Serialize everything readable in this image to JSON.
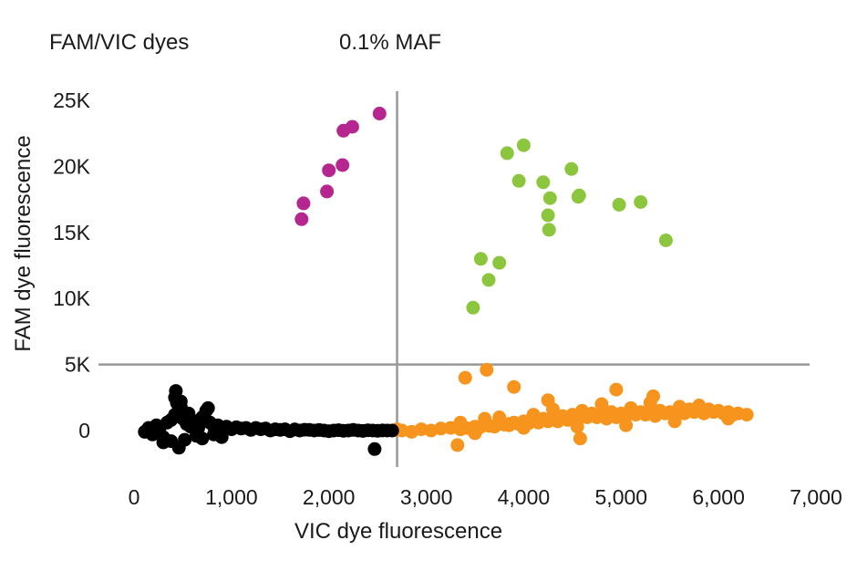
{
  "header": {
    "left": "FAM/VIC dyes",
    "right": "0.1% MAF"
  },
  "chart_data": {
    "type": "scatter",
    "xlabel": "VIC dye fluorescence",
    "ylabel": "FAM dye fluorescence",
    "xlim": [
      0,
      7000
    ],
    "ylim": [
      -2000,
      25000
    ],
    "x_ticks": [
      0,
      1000,
      2000,
      3000,
      4000,
      5000,
      6000,
      7000
    ],
    "x_tick_labels": [
      "0",
      "1,000",
      "2,000",
      "3,000",
      "4,000",
      "5,000",
      "6,000",
      "7,000"
    ],
    "y_ticks": [
      0,
      5000,
      10000,
      15000,
      20000,
      25000
    ],
    "y_tick_labels": [
      "0",
      "5K",
      "10K",
      "15K",
      "20K",
      "25K"
    ],
    "thresholds": {
      "x": 2700,
      "y": 5000
    },
    "grid": false,
    "legend": "none",
    "colors": {
      "fam_only": "#b5268e",
      "fam_vic": "#8cc63f",
      "vic_only": "#f7941d",
      "negative": "#000000",
      "threshold_line": "#999999"
    },
    "series": [
      {
        "color": "#b5268e",
        "x": [
          1720,
          1740,
          1980,
          2000,
          2140,
          2150,
          2240,
          2520
        ],
        "y": [
          16000,
          17200,
          18100,
          19700,
          20100,
          22700,
          23000,
          24000
        ]
      },
      {
        "color": "#8cc63f",
        "x": [
          3480,
          3560,
          3640,
          3750,
          3830,
          3950,
          4000,
          4200,
          4250,
          4260,
          4270,
          4490,
          4560,
          4570,
          4980,
          5200,
          5460
        ],
        "y": [
          9300,
          13000,
          11400,
          12700,
          21000,
          18900,
          21600,
          18800,
          16300,
          15200,
          17600,
          19800,
          17700,
          17800,
          17100,
          17300,
          14400
        ]
      },
      {
        "color": "#f7941d",
        "x": [
          2700,
          2750,
          2850,
          2950,
          3050,
          3150,
          3250,
          3320,
          3350,
          3400,
          3450,
          3500,
          3550,
          3600,
          3650,
          3700,
          3750,
          3800,
          3850,
          3900,
          3950,
          4000,
          4050,
          4100,
          4150,
          4200,
          4250,
          4300,
          4350,
          4400,
          4450,
          4500,
          4550,
          4600,
          4650,
          4700,
          4750,
          4800,
          4850,
          4900,
          4950,
          5000,
          5050,
          5100,
          5150,
          5200,
          5250,
          5300,
          5350,
          5400,
          5450,
          5500,
          5550,
          5600,
          5650,
          5700,
          5750,
          5800,
          5850,
          5900,
          5950,
          6000,
          6050,
          6100,
          6150,
          6200,
          6290,
          3400,
          3620,
          3900,
          4250,
          4950,
          5330,
          4580,
          3350,
          3600,
          3850,
          4100,
          4350,
          4600,
          4850,
          5100,
          5350,
          5600,
          3500,
          3750,
          4000,
          4300,
          4550,
          4800,
          5050,
          5300,
          5550,
          5800,
          6100
        ],
        "y": [
          100,
          0,
          -100,
          100,
          0,
          150,
          200,
          -1100,
          100,
          200,
          150,
          300,
          250,
          400,
          350,
          300,
          500,
          450,
          400,
          600,
          500,
          700,
          550,
          800,
          600,
          900,
          700,
          1000,
          750,
          1100,
          800,
          1200,
          900,
          1100,
          1000,
          1300,
          1000,
          1200,
          1100,
          1400,
          1000,
          1300,
          1100,
          1500,
          1200,
          1400,
          1200,
          1600,
          1300,
          1500,
          1300,
          1400,
          1200,
          1500,
          1300,
          1600,
          1400,
          1500,
          1300,
          1600,
          1400,
          1500,
          1300,
          1400,
          1200,
          1300,
          1200,
          4000,
          4600,
          3300,
          2300,
          3100,
          2600,
          -600,
          600,
          900,
          500,
          1200,
          700,
          1500,
          900,
          1700,
          1100,
          1800,
          -200,
          1000,
          200,
          1600,
          300,
          2000,
          400,
          2100,
          700,
          1900,
          900
        ]
      },
      {
        "color": "#000000",
        "x": [
          110,
          150,
          190,
          230,
          260,
          300,
          340,
          380,
          420,
          460,
          500,
          540,
          580,
          620,
          660,
          700,
          740,
          780,
          820,
          860,
          900,
          950,
          1000,
          1050,
          1100,
          1150,
          1200,
          1250,
          1300,
          1350,
          1400,
          1450,
          1500,
          1550,
          1600,
          1650,
          1700,
          1750,
          1800,
          1850,
          1900,
          1950,
          2000,
          2050,
          2100,
          2150,
          2200,
          2250,
          2300,
          2350,
          2400,
          2450,
          2500,
          2550,
          2600,
          2650,
          430,
          440,
          460,
          480,
          760,
          480,
          2470,
          380,
          520,
          640,
          700,
          820,
          300,
          560,
          900,
          420
        ],
        "y": [
          -100,
          200,
          -300,
          400,
          100,
          -500,
          600,
          800,
          1200,
          1600,
          900,
          500,
          300,
          700,
          200,
          1000,
          1500,
          600,
          300,
          400,
          200,
          300,
          100,
          250,
          150,
          200,
          50,
          200,
          100,
          150,
          0,
          100,
          50,
          100,
          -50,
          80,
          0,
          60,
          50,
          0,
          40,
          0,
          -50,
          0,
          30,
          -20,
          0,
          50,
          0,
          -30,
          20,
          0,
          -20,
          10,
          0,
          0,
          3000,
          2100,
          -1300,
          1800,
          1700,
          2200,
          -1400,
          -800,
          -700,
          -400,
          -600,
          -300,
          -900,
          1300,
          -500,
          2500
        ]
      }
    ]
  }
}
